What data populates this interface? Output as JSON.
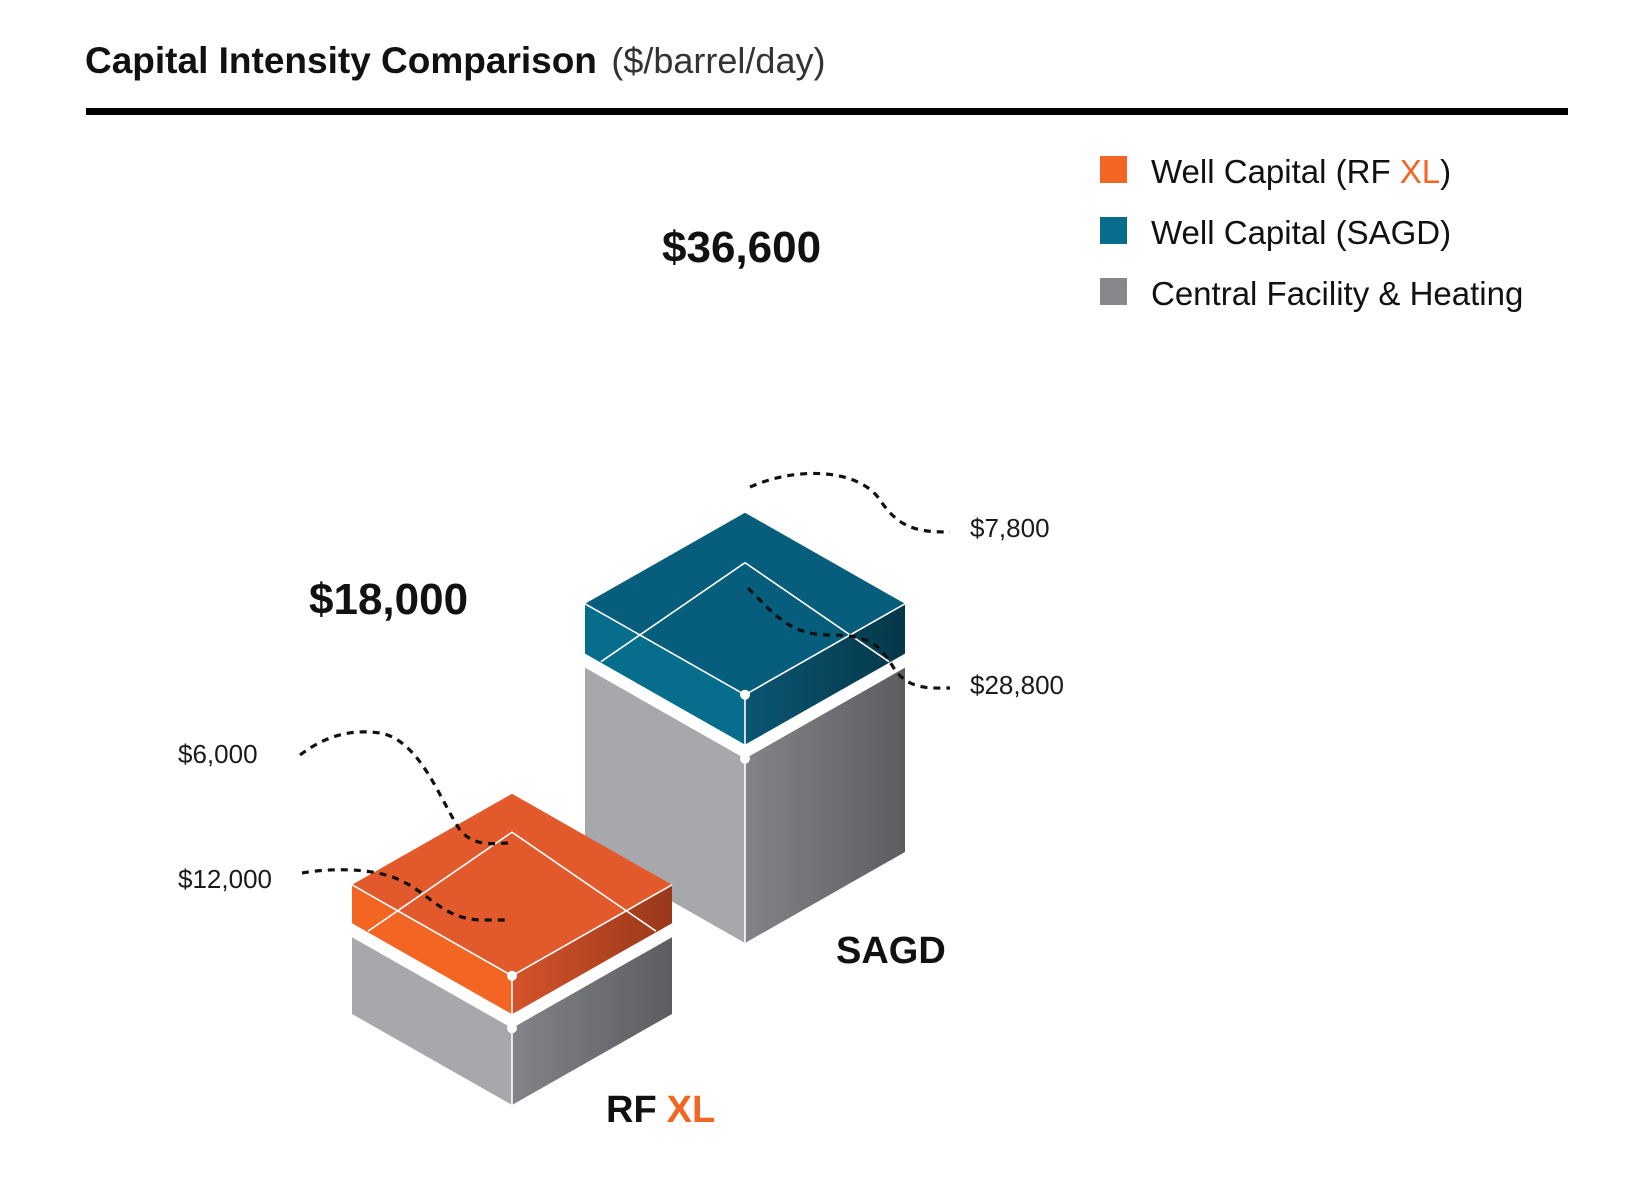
{
  "chart_data": {
    "type": "bar",
    "style": "isometric-stacked-3d",
    "title": "Capital Intensity Comparison",
    "subtitle": "($/barrel/day)",
    "categories": [
      {
        "name_main": "RF",
        "name_accent": "XL"
      },
      {
        "name_main": "SAGD",
        "name_accent": ""
      }
    ],
    "series": [
      {
        "name": "Central Facility & Heating",
        "color": "#8a8b8f",
        "values": [
          12000,
          28800
        ]
      },
      {
        "name": "Well Capital",
        "values": [
          6000,
          7800
        ]
      }
    ],
    "totals": [
      18000,
      36600
    ],
    "labels": {
      "totals": [
        "$18,000",
        "$36,600"
      ],
      "segments": {
        "rfxl_well": "$6,000",
        "rfxl_central": "$12,000",
        "sagd_well": "$7,800",
        "sagd_central": "$28,800"
      }
    },
    "legend": {
      "position": "top-right",
      "items": [
        {
          "text_main": "Well Capital (RF ",
          "text_accent": "XL",
          "text_end": ")",
          "color": "#f26522"
        },
        {
          "text_main": "Well Capital (SAGD)",
          "text_accent": "",
          "text_end": "",
          "color": "#066e8c"
        },
        {
          "text_main": "Central Facility & Heating",
          "text_accent": "",
          "text_end": "",
          "color": "#87888c"
        }
      ]
    },
    "colors": {
      "rfxl_top": "#e25a2b",
      "rfxl_left": "#f26522",
      "rfxl_right_start": "#d5532a",
      "rfxl_right_end": "#99381a",
      "sagd_top": "#075d7c",
      "sagd_left": "#066e8c",
      "sagd_right_start": "#0b5672",
      "sagd_right_end": "#053749",
      "gray_left": "#a7a8ab",
      "gray_right_start": "#838488",
      "gray_right_end": "#5c5d61",
      "accent": "#f26522"
    },
    "grid": false
  }
}
